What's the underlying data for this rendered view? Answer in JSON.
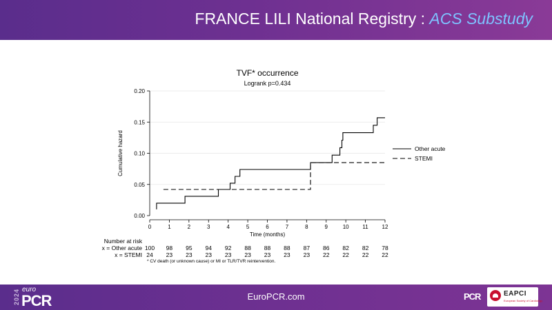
{
  "header": {
    "title_main": "FRANCE LILI National Registry : ",
    "title_accent": "ACS Substudy"
  },
  "footer": {
    "url": "EuroPCR.com",
    "logo_year": "2024",
    "logo_euro": "euro",
    "logo_pcr": "PCR",
    "logo_pcr_small": "PCR",
    "logo_eapci": "EAPCI",
    "logo_eapci_sub": "European Society of Cardiology"
  },
  "colors": {
    "header_gradient_start": "#5a2d8c",
    "header_gradient_end": "#8a3a97",
    "title_accent": "#7ec3ff"
  },
  "chart_data": {
    "type": "line",
    "title": "TVF* occurrence",
    "subtitle": "Logrank p=0.434",
    "xlabel": "Time (months)",
    "ylabel": "Cumulative hazard",
    "xlim": [
      0,
      12
    ],
    "ylim": [
      0,
      0.2
    ],
    "xticks": [
      0,
      1,
      2,
      3,
      4,
      5,
      6,
      7,
      8,
      9,
      10,
      11,
      12
    ],
    "yticks": [
      0.0,
      0.05,
      0.1,
      0.15,
      0.2
    ],
    "ytick_labels": [
      "0.00",
      "0.05",
      "0.10",
      "0.15",
      "0.20"
    ],
    "grid": true,
    "legend_position": "right",
    "series": [
      {
        "name": "Other acute",
        "style": "solid",
        "steps": [
          [
            0.35,
            0.01
          ],
          [
            0.35,
            0.02
          ],
          [
            1.8,
            0.02
          ],
          [
            1.8,
            0.031
          ],
          [
            3.5,
            0.031
          ],
          [
            3.5,
            0.042
          ],
          [
            4.1,
            0.042
          ],
          [
            4.1,
            0.052
          ],
          [
            4.35,
            0.052
          ],
          [
            4.35,
            0.063
          ],
          [
            4.6,
            0.063
          ],
          [
            4.6,
            0.074
          ],
          [
            8.2,
            0.074
          ],
          [
            8.2,
            0.085
          ],
          [
            9.3,
            0.085
          ],
          [
            9.3,
            0.097
          ],
          [
            9.7,
            0.097
          ],
          [
            9.7,
            0.109
          ],
          [
            9.8,
            0.109
          ],
          [
            9.8,
            0.121
          ],
          [
            9.85,
            0.121
          ],
          [
            9.85,
            0.133
          ],
          [
            11.4,
            0.133
          ],
          [
            11.4,
            0.145
          ],
          [
            11.6,
            0.145
          ],
          [
            11.6,
            0.157
          ],
          [
            12,
            0.157
          ]
        ]
      },
      {
        "name": "STEMI",
        "style": "dashed",
        "steps": [
          [
            0.7,
            0.042
          ],
          [
            8.2,
            0.042
          ],
          [
            8.2,
            0.085
          ],
          [
            12,
            0.085
          ]
        ]
      }
    ],
    "risk_table": {
      "header": "Number at risk",
      "rows": [
        {
          "label": "x = Other acute",
          "values": [
            "100",
            "98",
            "95",
            "94",
            "92",
            "88",
            "88",
            "88",
            "87",
            "86",
            "82",
            "82",
            "78"
          ]
        },
        {
          "label": "x = STEMI",
          "values": [
            "24",
            "23",
            "23",
            "23",
            "23",
            "23",
            "23",
            "23",
            "23",
            "22",
            "22",
            "22",
            "22"
          ]
        }
      ]
    },
    "footnote": "* CV death (or unknown cause) or MI or TLR/TVR reintervention."
  }
}
